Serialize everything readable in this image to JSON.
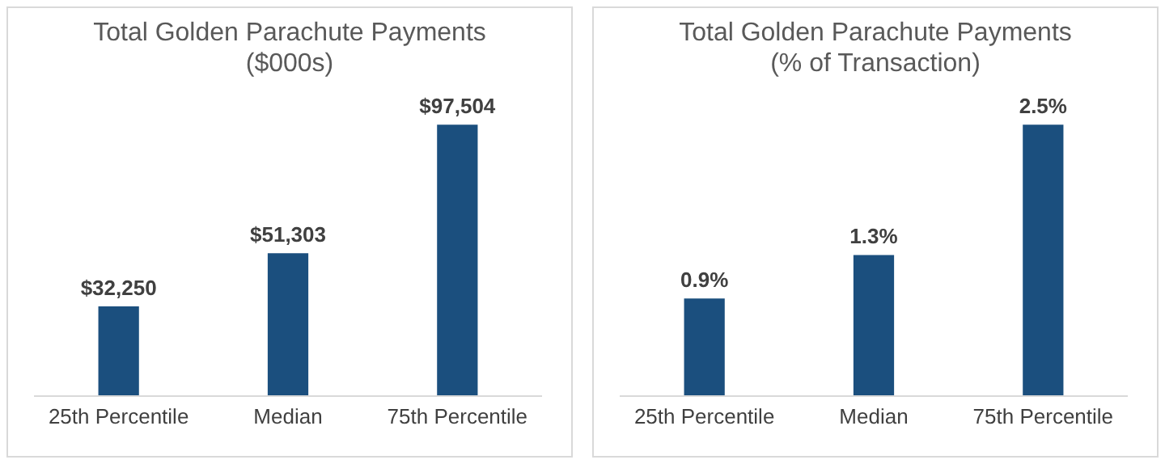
{
  "chart_data": [
    {
      "type": "bar",
      "title": "Total Golden Parachute Payments",
      "subtitle": "($000s)",
      "categories": [
        "25th Percentile",
        "Median",
        "75th Percentile"
      ],
      "values": [
        32250,
        51303,
        97504
      ],
      "value_labels": [
        "$32,250",
        "$51,303",
        "$97,504"
      ],
      "color": "#1b4f7e",
      "tick_labels": "x",
      "grid": false,
      "legend": false
    },
    {
      "type": "bar",
      "title": "Total Golden Parachute Payments",
      "subtitle": "(% of Transaction)",
      "categories": [
        "25th Percentile",
        "Median",
        "75th Percentile"
      ],
      "values": [
        0.9,
        1.3,
        2.5
      ],
      "value_labels": [
        "0.9%",
        "1.3%",
        "2.5%"
      ],
      "color": "#1b4f7e",
      "tick_labels": "x",
      "grid": false,
      "legend": false
    }
  ]
}
